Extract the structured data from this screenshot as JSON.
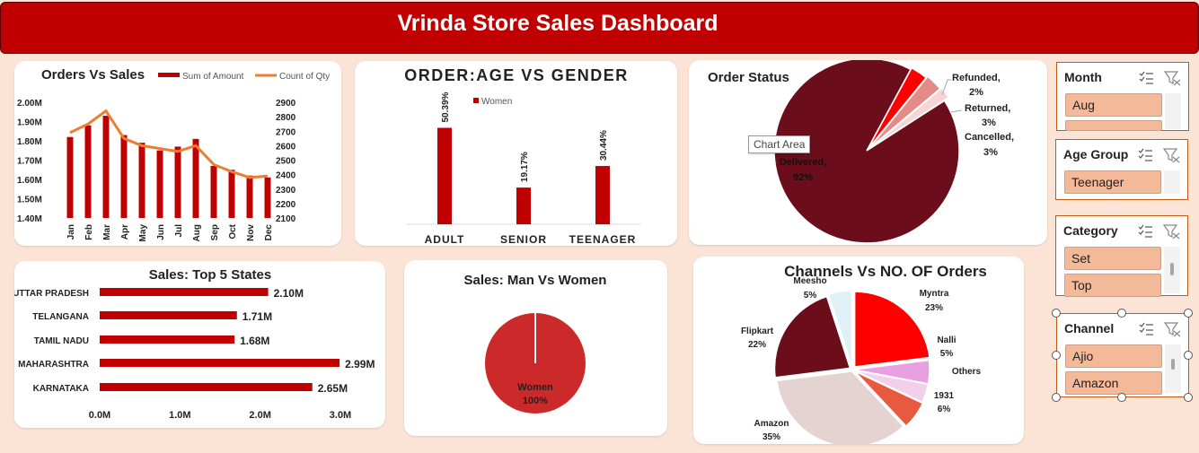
{
  "header": {
    "title": "Vrinda Store Sales Dashboard"
  },
  "orders_vs_sales": {
    "title": "Orders Vs Sales",
    "legend_amount": "Sum of Amount",
    "legend_qty": "Count of Qty",
    "left_ticks": [
      "2.00M",
      "1.90M",
      "1.80M",
      "1.70M",
      "1.60M",
      "1.50M",
      "1.40M"
    ],
    "right_ticks": [
      "2900",
      "2800",
      "2700",
      "2600",
      "2500",
      "2400",
      "2300",
      "2200",
      "2100"
    ]
  },
  "age_gender": {
    "title": "ORDER:AGE VS GENDER",
    "legend": "Women"
  },
  "order_status": {
    "title": "Order Status",
    "tooltip": "Chart Area",
    "labels": {
      "refunded_name": "Refunded,",
      "refunded_pct": "2%",
      "returned_name": "Returned,",
      "returned_pct": "3%",
      "cancelled_name": "Cancelled,",
      "cancelled_pct": "3%",
      "delivered_name": "Delivered,",
      "delivered_pct": "92%"
    }
  },
  "top_states": {
    "title": "Sales: Top 5 States",
    "ticks": [
      "0.0M",
      "1.0M",
      "2.0M",
      "3.0M"
    ]
  },
  "man_vs_women": {
    "title": "Sales: Man Vs Women",
    "label_name": "Women",
    "label_pct": "100%"
  },
  "channels": {
    "title": "Channels Vs NO. OF Orders",
    "labels": {
      "meesho_name": "Meesho",
      "meesho_pct": "5%",
      "myntra_name": "Myntra",
      "myntra_pct": "23%",
      "nalli_name": "Nalli",
      "nalli_pct": "5%",
      "others_name": "Others",
      "c1931_name": "1931",
      "c1931_pct": "6%",
      "amazon_name": "Amazon",
      "amazon_pct": "35%",
      "flipkart_name": "Flipkart",
      "flipkart_pct": "22%"
    }
  },
  "slicers": {
    "month": {
      "title": "Month",
      "items": [
        "Aug"
      ]
    },
    "age_group": {
      "title": "Age Group",
      "items": [
        "Teenager"
      ]
    },
    "category": {
      "title": "Category",
      "items": [
        "Set",
        "Top"
      ]
    },
    "channel": {
      "title": "Channel",
      "items": [
        "Ajio",
        "Amazon"
      ]
    }
  },
  "chart_data": [
    {
      "type": "bar",
      "title": "Orders Vs Sales",
      "categories": [
        "Jan",
        "Feb",
        "Mar",
        "Apr",
        "May",
        "Jun",
        "Jul",
        "Aug",
        "Sep",
        "Oct",
        "Nov",
        "Dec"
      ],
      "series": [
        {
          "name": "Sum of Amount",
          "type": "bar",
          "axis": "left",
          "values": [
            1.82,
            1.88,
            1.93,
            1.83,
            1.79,
            1.75,
            1.77,
            1.81,
            1.67,
            1.65,
            1.62,
            1.61
          ]
        },
        {
          "name": "Count of Qty",
          "type": "line",
          "axis": "right",
          "values": [
            2690,
            2750,
            2840,
            2650,
            2600,
            2580,
            2560,
            2600,
            2470,
            2420,
            2380,
            2390
          ]
        }
      ],
      "ylim_left": [
        1.4,
        2.0
      ],
      "ylim_right": [
        2100,
        2900
      ],
      "colors": {
        "bar": "#c00000",
        "line": "#ed7d31"
      }
    },
    {
      "type": "bar",
      "title": "ORDER:AGE VS GENDER",
      "categories": [
        "ADULT",
        "SENIOR",
        "TEENAGER"
      ],
      "series": [
        {
          "name": "Women",
          "values": [
            50.39,
            19.17,
            30.44
          ]
        }
      ],
      "data_labels": [
        "50.39%",
        "19.17%",
        "30.44%"
      ],
      "ylim": [
        0,
        60
      ]
    },
    {
      "type": "pie",
      "title": "Order Status",
      "slices": [
        {
          "name": "Delivered",
          "value": 92,
          "color": "#6b0d1a"
        },
        {
          "name": "Cancelled",
          "value": 3,
          "color": "#ff0000"
        },
        {
          "name": "Returned",
          "value": 3,
          "color": "#e28b88"
        },
        {
          "name": "Refunded",
          "value": 2,
          "color": "#f8d3d7"
        }
      ]
    },
    {
      "type": "bar",
      "orientation": "horizontal",
      "title": "Sales: Top 5 States",
      "categories": [
        "UTTAR PRADESH",
        "TELANGANA",
        "TAMIL NADU",
        "MAHARASHTRA",
        "KARNATAKA"
      ],
      "values": [
        2.1,
        1.71,
        1.68,
        2.99,
        2.65
      ],
      "data_labels": [
        "2.10M",
        "1.71M",
        "1.68M",
        "2.99M",
        "2.65M"
      ],
      "xlim": [
        0,
        3.0
      ]
    },
    {
      "type": "pie",
      "title": "Sales: Man Vs Women",
      "slices": [
        {
          "name": "Women",
          "value": 100,
          "color": "#cc2a2a"
        }
      ]
    },
    {
      "type": "pie",
      "title": "Channels Vs NO. OF Orders",
      "slices": [
        {
          "name": "Myntra",
          "value": 23,
          "color": "#ff0000"
        },
        {
          "name": "Nalli",
          "value": 5,
          "color": "#e8a0e0"
        },
        {
          "name": "Others",
          "value": 4,
          "color": "#f4cfe9"
        },
        {
          "name": "1931",
          "value": 6,
          "color": "#e85a40"
        },
        {
          "name": "Amazon",
          "value": 35,
          "color": "#e5d3d2"
        },
        {
          "name": "Flipkart",
          "value": 22,
          "color": "#6b0d1a"
        },
        {
          "name": "Meesho",
          "value": 5,
          "color": "#dff1f6"
        }
      ]
    }
  ]
}
